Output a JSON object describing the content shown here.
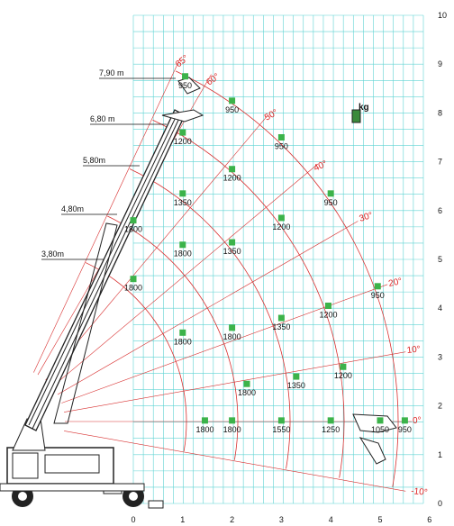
{
  "chart_data": {
    "type": "scatter",
    "title": "",
    "xlabel": "",
    "ylabel": "",
    "x_ticks": [
      "0",
      "1",
      "2",
      "3",
      "4",
      "5",
      "6"
    ],
    "y_ticks": [
      "0",
      "1",
      "2",
      "3",
      "4",
      "5",
      "6",
      "7",
      "8",
      "9",
      "10"
    ],
    "xlim": [
      0,
      6
    ],
    "ylim": [
      0,
      10
    ],
    "grid": true,
    "unit_label": "kg",
    "grid_color": "#5fd3d3",
    "arc_color": "#d83030",
    "point_color": "#3cb34a",
    "boom_radius_labels": [
      "7,90 m",
      "6,80 m",
      "5,80m",
      "4,80m",
      "3,80m"
    ],
    "angle_labels": [
      "65°",
      "60°",
      "50°",
      "40°",
      "30°",
      "20°",
      "10°",
      "0°",
      "-10°"
    ],
    "load_points": [
      {
        "x": 1.05,
        "y": 8.75,
        "load": "950"
      },
      {
        "x": 2.0,
        "y": 8.25,
        "load": "950"
      },
      {
        "x": 3.0,
        "y": 7.5,
        "load": "950"
      },
      {
        "x": 4.0,
        "y": 6.35,
        "load": "950"
      },
      {
        "x": 4.95,
        "y": 4.45,
        "load": "950"
      },
      {
        "x": 5.5,
        "y": 1.7,
        "load": "950"
      },
      {
        "x": 1.0,
        "y": 7.6,
        "load": "1200"
      },
      {
        "x": 2.0,
        "y": 6.85,
        "load": "1200"
      },
      {
        "x": 3.0,
        "y": 5.85,
        "load": "1200"
      },
      {
        "x": 3.95,
        "y": 4.05,
        "load": "1200"
      },
      {
        "x": 4.25,
        "y": 2.8,
        "load": "1200"
      },
      {
        "x": 1.0,
        "y": 6.35,
        "load": "1350"
      },
      {
        "x": 2.0,
        "y": 5.35,
        "load": "1350"
      },
      {
        "x": 3.0,
        "y": 3.8,
        "load": "1350"
      },
      {
        "x": 3.3,
        "y": 2.6,
        "load": "1350"
      },
      {
        "x": 0.0,
        "y": 5.8,
        "load": "1800"
      },
      {
        "x": 1.0,
        "y": 5.3,
        "load": "1800"
      },
      {
        "x": 0.0,
        "y": 4.6,
        "load": "1800"
      },
      {
        "x": 2.0,
        "y": 3.6,
        "load": "1800"
      },
      {
        "x": 1.0,
        "y": 3.5,
        "load": "1800"
      },
      {
        "x": 2.3,
        "y": 2.45,
        "load": "1800"
      },
      {
        "x": 1.45,
        "y": 1.7,
        "load": "1800"
      },
      {
        "x": 2.0,
        "y": 1.7,
        "load": "1800"
      },
      {
        "x": 3.0,
        "y": 1.7,
        "load": "1550"
      },
      {
        "x": 4.0,
        "y": 1.7,
        "load": "1250"
      },
      {
        "x": 5.0,
        "y": 1.7,
        "load": "1050"
      }
    ]
  }
}
